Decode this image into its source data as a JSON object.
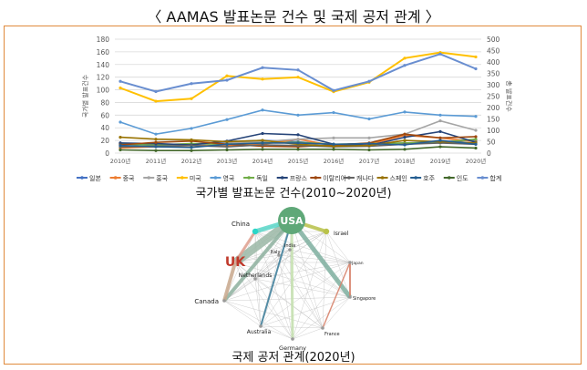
{
  "header": {
    "title": "〈 AAMAS 발표논문 건수 및 국제 공저 관계 〉"
  },
  "captions": {
    "line_chart": "국가별 발표논문 건수(2010~2020년)",
    "network": "국제 공저 관계(2020년)"
  },
  "chart_data": [
    {
      "type": "line",
      "x": [
        "2010년",
        "2011년",
        "2012년",
        "2013년",
        "2014년",
        "2015년",
        "2016년",
        "2017년",
        "2018년",
        "2019년",
        "2020년"
      ],
      "ylabel": "국가별 발표건수",
      "y2label": "총 발표건수",
      "ylim": [
        0,
        180
      ],
      "y2lim": [
        0,
        500
      ],
      "yticks": [
        "0",
        "20",
        "40",
        "60",
        "80",
        "100",
        "120",
        "140",
        "160",
        "180"
      ],
      "y2ticks": [
        "0",
        "50",
        "100",
        "150",
        "200",
        "250",
        "300",
        "350",
        "400",
        "450",
        "500"
      ],
      "grid": true,
      "legend_position": "bottom",
      "series": [
        {
          "name": "일본",
          "color": "#4472c4",
          "axis": "left",
          "values": [
            15,
            12,
            14,
            18,
            20,
            18,
            13,
            14,
            16,
            18,
            20
          ]
        },
        {
          "name": "중국",
          "color": "#ed7d31",
          "axis": "left",
          "values": [
            8,
            10,
            12,
            12,
            14,
            22,
            12,
            14,
            28,
            24,
            18
          ]
        },
        {
          "name": "홍국",
          "color": "#a5a5a5",
          "axis": "left",
          "values": [
            16,
            14,
            13,
            16,
            18,
            22,
            24,
            24,
            30,
            51,
            36
          ]
        },
        {
          "name": "미국",
          "color": "#ffc000",
          "axis": "left",
          "values": [
            103,
            82,
            86,
            122,
            117,
            120,
            97,
            112,
            150,
            159,
            152
          ]
        },
        {
          "name": "영국",
          "color": "#5b9bd5",
          "axis": "left",
          "values": [
            49,
            30,
            39,
            53,
            68,
            60,
            64,
            54,
            65,
            60,
            58
          ]
        },
        {
          "name": "독일",
          "color": "#70ad47",
          "axis": "left",
          "values": [
            14,
            13,
            15,
            14,
            16,
            17,
            14,
            15,
            16,
            17,
            22
          ]
        },
        {
          "name": "프랑스",
          "color": "#264478",
          "axis": "left",
          "values": [
            16,
            15,
            13,
            19,
            31,
            29,
            14,
            12,
            25,
            34,
            17
          ]
        },
        {
          "name": "이탈리아",
          "color": "#9e480e",
          "axis": "left",
          "values": [
            13,
            17,
            19,
            14,
            11,
            10,
            13,
            16,
            30,
            24,
            26
          ]
        },
        {
          "name": "캐나다",
          "color": "#636363",
          "axis": "left",
          "values": [
            10,
            11,
            12,
            10,
            13,
            12,
            10,
            11,
            14,
            16,
            14
          ]
        },
        {
          "name": "스페인",
          "color": "#997300",
          "axis": "left",
          "values": [
            25,
            22,
            21,
            18,
            20,
            14,
            11,
            12,
            20,
            18,
            16
          ]
        },
        {
          "name": "호주",
          "color": "#255e91",
          "axis": "left",
          "values": [
            12,
            10,
            9,
            14,
            16,
            16,
            14,
            15,
            13,
            20,
            14
          ]
        },
        {
          "name": "인도",
          "color": "#43682b",
          "axis": "left",
          "values": [
            5,
            4,
            4,
            5,
            6,
            6,
            6,
            5,
            6,
            10,
            8
          ]
        },
        {
          "name": "합계",
          "color": "#698ed0",
          "axis": "right",
          "values": [
            315,
            270,
            305,
            320,
            375,
            365,
            275,
            315,
            385,
            435,
            370
          ]
        }
      ]
    }
  ],
  "network": {
    "nodes": [
      {
        "label": "USA",
        "type": "large",
        "color": "#5fa878"
      },
      {
        "label": "UK",
        "type": "label",
        "color": "#c0392b"
      },
      {
        "label": "China",
        "type": "small",
        "color": "#2bd6c8"
      },
      {
        "label": "Israel",
        "type": "small",
        "color": "#b9c24a"
      },
      {
        "label": "India",
        "type": "tiny",
        "color": "#999999"
      },
      {
        "label": "Italy",
        "type": "tiny",
        "color": "#999999"
      },
      {
        "label": "Netherlands",
        "type": "tiny",
        "color": "#999999"
      },
      {
        "label": "Japan",
        "type": "tiny",
        "color": "#999999"
      },
      {
        "label": "Canada",
        "type": "tiny",
        "color": "#999999"
      },
      {
        "label": "Singapore",
        "type": "tiny",
        "color": "#999999"
      },
      {
        "label": "Australia",
        "type": "tiny",
        "color": "#999999"
      },
      {
        "label": "France",
        "type": "tiny",
        "color": "#999999"
      },
      {
        "label": "Germany",
        "type": "tiny",
        "color": "#999999"
      }
    ]
  }
}
